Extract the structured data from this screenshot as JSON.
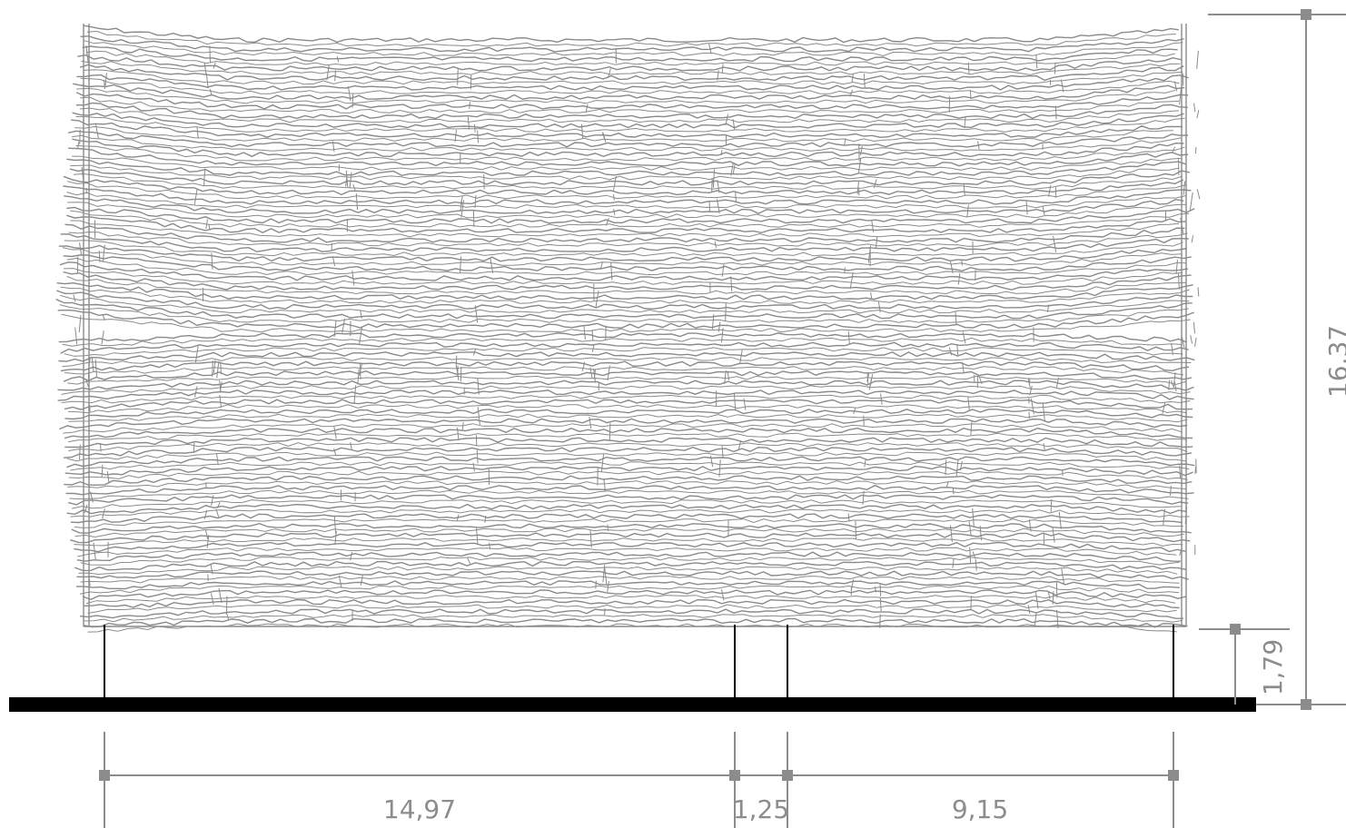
{
  "drawing": {
    "dimensions": {
      "overall_height": "16,37",
      "clearance": "1,79",
      "span_left": "14,97",
      "span_middle": "1,25",
      "span_right": "9,15"
    },
    "colors": {
      "foliage": "#8a8a8a",
      "dimension": "#8c8c8c",
      "structure": "#000000",
      "background": "#ffffff"
    }
  }
}
